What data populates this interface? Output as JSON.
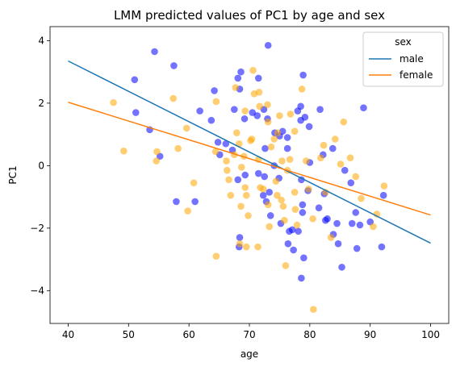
{
  "chart_data": {
    "type": "scatter",
    "title": "LMM predicted values of PC1 by age and sex",
    "xlabel": "age",
    "ylabel": "PC1",
    "xlim": [
      37,
      103
    ],
    "ylim": [
      -5.05,
      4.45
    ],
    "xticks": [
      40,
      50,
      60,
      70,
      80,
      90,
      100
    ],
    "yticks": [
      -4,
      -2,
      0,
      2,
      4
    ],
    "legend": {
      "title": "sex",
      "placement": "top-right",
      "entries": [
        {
          "label": "male",
          "color": "#1f77b4"
        },
        {
          "label": "female",
          "color": "#ff7f0e"
        }
      ]
    },
    "lines": [
      {
        "name": "male",
        "color": "#1f77b4",
        "x": [
          40,
          100
        ],
        "y": [
          3.35,
          -2.48
        ]
      },
      {
        "name": "female",
        "color": "#ff7f0e",
        "x": [
          40,
          100
        ],
        "y": [
          2.03,
          -1.58
        ]
      }
    ],
    "series": [
      {
        "name": "male",
        "color": "#0000ff",
        "points": [
          [
            51,
            2.75
          ],
          [
            51.2,
            1.7
          ],
          [
            54.3,
            3.65
          ],
          [
            57.5,
            3.2
          ],
          [
            53.5,
            1.15
          ],
          [
            55.2,
            0.3
          ],
          [
            57.9,
            -1.15
          ],
          [
            61,
            -1.15
          ],
          [
            61.8,
            1.75
          ],
          [
            63.7,
            1.45
          ],
          [
            64.2,
            2.4
          ],
          [
            64.8,
            0.75
          ],
          [
            65.1,
            0.35
          ],
          [
            66.1,
            0.7
          ],
          [
            67.2,
            0.5
          ],
          [
            67.5,
            1.8
          ],
          [
            68.1,
            2.8
          ],
          [
            68.6,
            3
          ],
          [
            68.4,
            2.45
          ],
          [
            69.2,
            1.5
          ],
          [
            68.1,
            -0.45
          ],
          [
            69.3,
            -0.3
          ],
          [
            68.4,
            -2.3
          ],
          [
            68.3,
            -2.6
          ],
          [
            70.5,
            1.7
          ],
          [
            71.5,
            2.8
          ],
          [
            73.1,
            3.85
          ],
          [
            71.3,
            1.6
          ],
          [
            72.4,
            1.8
          ],
          [
            73,
            1.5
          ],
          [
            74.2,
            1.05
          ],
          [
            72.6,
            0.55
          ],
          [
            71.5,
            -0.25
          ],
          [
            72.5,
            -0.35
          ],
          [
            73.3,
            -0.85
          ],
          [
            72.3,
            -0.95
          ],
          [
            72.8,
            -1.15
          ],
          [
            73.5,
            -1.6
          ],
          [
            74.1,
            0
          ],
          [
            75.5,
            1.1
          ],
          [
            75,
            0.95
          ],
          [
            76.3,
            0.55
          ],
          [
            76.3,
            0.9
          ],
          [
            74.9,
            -0.4
          ],
          [
            75.2,
            -1.85
          ],
          [
            76.6,
            -2.1
          ],
          [
            77.1,
            -2.05
          ],
          [
            76.4,
            -2.5
          ],
          [
            77.3,
            -2.7
          ],
          [
            78,
            1.75
          ],
          [
            78.5,
            1.9
          ],
          [
            79.2,
            1.55
          ],
          [
            78.5,
            1.45
          ],
          [
            78.9,
            2.9
          ],
          [
            79.9,
            1.25
          ],
          [
            78.6,
            -0.45
          ],
          [
            79.7,
            -0.8
          ],
          [
            78.8,
            -1.25
          ],
          [
            78.8,
            -1.5
          ],
          [
            78.1,
            -2.1
          ],
          [
            79,
            -2.95
          ],
          [
            78.6,
            -3.6
          ],
          [
            80,
            0.1
          ],
          [
            81.7,
            1.8
          ],
          [
            82.2,
            0.35
          ],
          [
            82.4,
            -0.9
          ],
          [
            81.5,
            -1.35
          ],
          [
            82.6,
            -1.75
          ],
          [
            82.9,
            -1.7
          ],
          [
            83.8,
            0.55
          ],
          [
            84.5,
            -1.85
          ],
          [
            83.9,
            -2.2
          ],
          [
            84.7,
            -2.5
          ],
          [
            85.3,
            -3.25
          ],
          [
            85.8,
            -0.15
          ],
          [
            86.8,
            -0.55
          ],
          [
            87,
            -1.85
          ],
          [
            87.6,
            -1.5
          ],
          [
            87.8,
            -2.65
          ],
          [
            88.3,
            -1.9
          ],
          [
            88.9,
            1.85
          ],
          [
            90,
            -1.8
          ],
          [
            91.9,
            -2.6
          ],
          [
            92.2,
            -0.95
          ]
        ]
      },
      {
        "name": "female",
        "color": "#ffa500",
        "points": [
          [
            47.5,
            2.02
          ],
          [
            49.2,
            0.47
          ],
          [
            54.6,
            0.15
          ],
          [
            54.7,
            0.45
          ],
          [
            57.4,
            2.15
          ],
          [
            58.2,
            0.55
          ],
          [
            59.6,
            1.2
          ],
          [
            59.8,
            -1.45
          ],
          [
            60.8,
            -0.55
          ],
          [
            64.5,
            2.05
          ],
          [
            64.4,
            0.45
          ],
          [
            64.5,
            -2.9
          ],
          [
            66.2,
            0.15
          ],
          [
            66.3,
            -0.15
          ],
          [
            66.6,
            -0.45
          ],
          [
            66.9,
            -0.95
          ],
          [
            67.5,
            0.35
          ],
          [
            67.7,
            2.5
          ],
          [
            67.9,
            1.05
          ],
          [
            68.3,
            0.7
          ],
          [
            69.3,
            1.75
          ],
          [
            69.1,
            0.3
          ],
          [
            68.7,
            -0.05
          ],
          [
            69.3,
            -0.7
          ],
          [
            69.5,
            -0.95
          ],
          [
            69.8,
            -1.6
          ],
          [
            68.6,
            -1.3
          ],
          [
            68.4,
            -2.5
          ],
          [
            69.5,
            -2.6
          ],
          [
            70.6,
            3.05
          ],
          [
            70.8,
            2.3
          ],
          [
            70.2,
            0.8
          ],
          [
            70.4,
            0.85
          ],
          [
            71.6,
            2.35
          ],
          [
            71.7,
            1.9
          ],
          [
            71.5,
            0.2
          ],
          [
            71.8,
            -0.7
          ],
          [
            71.4,
            -2.6
          ],
          [
            72.3,
            -0.75
          ],
          [
            73.1,
            -1.25
          ],
          [
            73.3,
            -1.95
          ],
          [
            73,
            1.95
          ],
          [
            73.1,
            1.4
          ],
          [
            73.6,
            0.6
          ],
          [
            74.1,
            0.85
          ],
          [
            74.4,
            -0.5
          ],
          [
            74.7,
            1.05
          ],
          [
            75,
            1.6
          ],
          [
            74.6,
            -0.95
          ],
          [
            75.3,
            -1.1
          ],
          [
            75.6,
            -1.3
          ],
          [
            75.8,
            -1.75
          ],
          [
            76,
            -3.2
          ],
          [
            75.4,
            0.15
          ],
          [
            76.3,
            -0.15
          ],
          [
            76.7,
            0.2
          ],
          [
            76.8,
            1.65
          ],
          [
            77.5,
            1.1
          ],
          [
            77.5,
            -0.85
          ],
          [
            77.6,
            -1.4
          ],
          [
            77.9,
            -1.9
          ],
          [
            78.7,
            2.45
          ],
          [
            79.4,
            0.15
          ],
          [
            79.8,
            -0.75
          ],
          [
            80.5,
            -1.7
          ],
          [
            80.6,
            -4.6
          ],
          [
            81.8,
            0.25
          ],
          [
            82.3,
            0.65
          ],
          [
            82.6,
            -0.85
          ],
          [
            83.5,
            -2.3
          ],
          [
            84.2,
            0.85
          ],
          [
            85.1,
            0.05
          ],
          [
            85.6,
            1.4
          ],
          [
            86.7,
            0.25
          ],
          [
            87.6,
            -0.35
          ],
          [
            88.5,
            -1.05
          ],
          [
            90.5,
            -1.95
          ],
          [
            91.1,
            -1.55
          ],
          [
            92.3,
            -0.65
          ]
        ]
      }
    ]
  }
}
